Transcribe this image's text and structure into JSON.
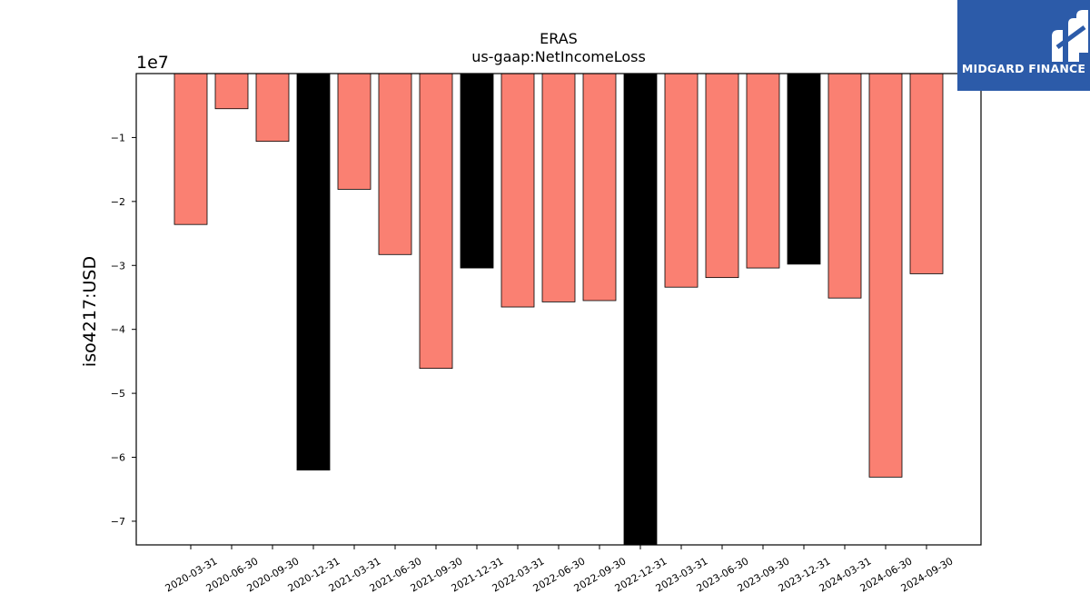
{
  "chart_data": {
    "type": "bar",
    "title": "ERAS",
    "subtitle": "us-gaap:NetIncomeLoss",
    "ylabel": "iso4217:USD",
    "xlabel": "",
    "offset_label": "1e7",
    "categories": [
      "2020-03-31",
      "2020-06-30",
      "2020-09-30",
      "2020-12-31",
      "2021-03-31",
      "2021-06-30",
      "2021-09-30",
      "2021-12-31",
      "2022-03-31",
      "2022-06-30",
      "2022-09-30",
      "2022-12-31",
      "2023-03-31",
      "2023-06-30",
      "2023-09-30",
      "2023-12-31",
      "2024-03-31",
      "2024-06-30",
      "2024-09-30"
    ],
    "values": [
      -23600000,
      -5500000,
      -10600000,
      -62000000,
      -18100000,
      -28300000,
      -46100000,
      -30400000,
      -36500000,
      -35700000,
      -35500000,
      -75000000,
      -33400000,
      -31900000,
      -30400000,
      -29800000,
      -35100000,
      -63100000,
      -31300000
    ],
    "highlight": [
      false,
      false,
      false,
      true,
      false,
      false,
      false,
      true,
      false,
      false,
      false,
      true,
      false,
      false,
      false,
      true,
      false,
      false,
      false
    ],
    "colors": {
      "normal": "#fa8072",
      "highlight": "#000000",
      "edge": "#000000"
    },
    "ylim": [
      -73700000,
      0
    ],
    "yticks": [
      -10000000,
      -20000000,
      -30000000,
      -40000000,
      -50000000,
      -60000000,
      -70000000
    ],
    "ytick_labels": [
      "−1",
      "−2",
      "−3",
      "−4",
      "−5",
      "−6",
      "−7"
    ],
    "grid": false,
    "legend": "none"
  },
  "logo": {
    "text": "MIDGARD FINANCE",
    "icon": "midgard-logo-icon",
    "background": "#2c5ba9"
  }
}
